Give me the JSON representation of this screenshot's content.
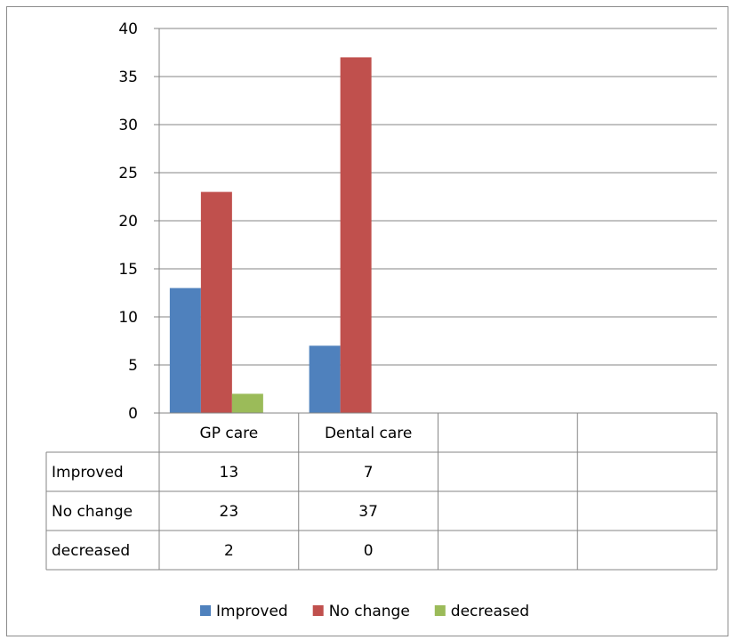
{
  "chart_data": {
    "type": "bar",
    "title": "",
    "xlabel": "",
    "ylabel": "",
    "categories": [
      "GP care",
      "Dental care",
      "",
      ""
    ],
    "series": [
      {
        "name": "Improved",
        "values": [
          13,
          7,
          null,
          null
        ],
        "color": "#4f81bd"
      },
      {
        "name": "No change",
        "values": [
          23,
          37,
          null,
          null
        ],
        "color": "#c0504d"
      },
      {
        "name": "decreased",
        "values": [
          2,
          0,
          null,
          null
        ],
        "color": "#9bbb59"
      }
    ],
    "ylim": [
      0,
      40
    ],
    "yticks": [
      0,
      5,
      10,
      15,
      20,
      25,
      30,
      35,
      40
    ],
    "grid": true,
    "legend_position": "bottom",
    "data_table": true
  }
}
